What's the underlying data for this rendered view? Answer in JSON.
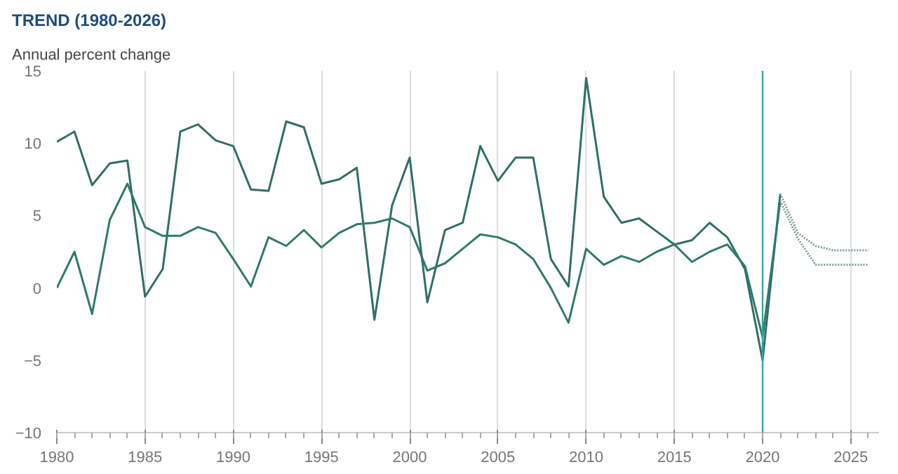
{
  "chart_data": {
    "type": "line",
    "title": "TREND (1980-2026)",
    "ylabel": "Annual percent change",
    "x": [
      1980,
      1981,
      1982,
      1983,
      1984,
      1985,
      1986,
      1987,
      1988,
      1989,
      1990,
      1991,
      1992,
      1993,
      1994,
      1995,
      1996,
      1997,
      1998,
      1999,
      2000,
      2001,
      2002,
      2003,
      2004,
      2005,
      2006,
      2007,
      2008,
      2009,
      2010,
      2011,
      2012,
      2013,
      2014,
      2015,
      2016,
      2017,
      2018,
      2019,
      2020,
      2021
    ],
    "series": [
      {
        "color": "#2f6f66",
        "values": [
          10.1,
          10.8,
          7.1,
          8.6,
          8.8,
          -0.6,
          1.3,
          10.8,
          11.3,
          10.2,
          9.8,
          6.8,
          6.7,
          11.5,
          11.1,
          7.2,
          7.5,
          8.3,
          -2.2,
          5.7,
          9.0,
          -1.0,
          4.0,
          4.5,
          9.8,
          7.4,
          9.0,
          9.0,
          2.0,
          0.1,
          14.5,
          6.3,
          4.5,
          4.8,
          3.9,
          3.0,
          3.3,
          4.5,
          3.5,
          1.3,
          -5.0,
          6.5
        ]
      },
      {
        "color": "#2f7a6c",
        "values": [
          0.0,
          2.5,
          -1.8,
          4.7,
          7.2,
          4.2,
          3.6,
          3.6,
          4.2,
          3.8,
          2.0,
          0.1,
          3.5,
          2.9,
          4.0,
          2.8,
          3.8,
          4.4,
          4.5,
          4.8,
          4.2,
          1.2,
          1.7,
          2.7,
          3.7,
          3.5,
          3.0,
          2.0,
          0.0,
          -2.4,
          2.7,
          1.6,
          2.2,
          1.8,
          2.5,
          3.0,
          1.8,
          2.5,
          3.0,
          1.5,
          -3.4,
          6.0
        ]
      },
      {
        "color": "#7f9c98",
        "line_style": "dotted",
        "x": [
          2021,
          2022,
          2023,
          2024,
          2025,
          2026
        ],
        "values": [
          6.5,
          3.8,
          2.9,
          2.6,
          2.6,
          2.6
        ]
      },
      {
        "color": "#7f9c98",
        "line_style": "dotted",
        "x": [
          2021,
          2022,
          2023,
          2024,
          2025,
          2026
        ],
        "values": [
          6.0,
          3.4,
          1.6,
          1.6,
          1.6,
          1.6
        ]
      }
    ],
    "line_style": "solid",
    "xlim": [
      1980,
      2026.6
    ],
    "xticks": [
      1980,
      1985,
      1990,
      1995,
      2000,
      2005,
      2010,
      2015,
      2020,
      2025
    ],
    "ylim": [
      -10,
      15
    ],
    "yticks": [
      -10,
      -5,
      0,
      5,
      10,
      15
    ],
    "grid": "x",
    "ref_lines": [
      {
        "axis": "x",
        "value": 2020,
        "color": "#3aa39a"
      }
    ]
  }
}
